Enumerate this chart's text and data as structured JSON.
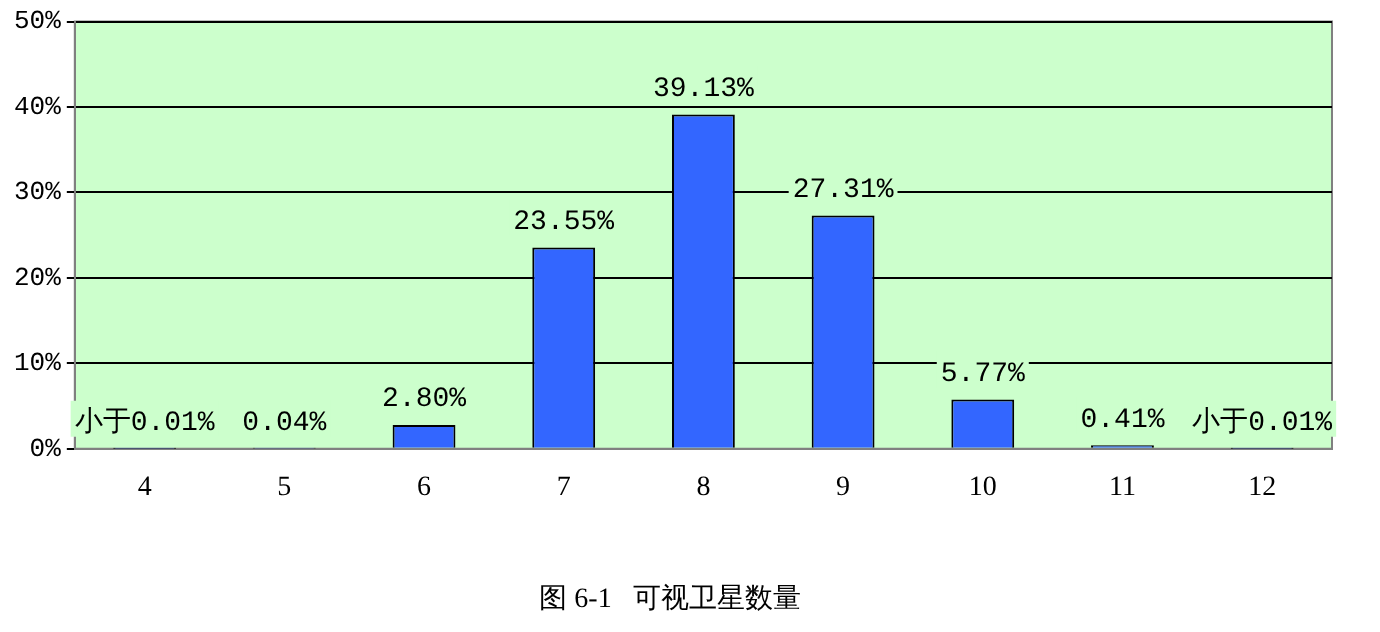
{
  "chart_data": {
    "type": "bar",
    "title": "图 6-1   可视卫星数量",
    "categories": [
      "4",
      "5",
      "6",
      "7",
      "8",
      "9",
      "10",
      "11",
      "12"
    ],
    "values": [
      0.005,
      0.04,
      2.8,
      23.55,
      39.13,
      27.31,
      5.77,
      0.41,
      0.005
    ],
    "value_labels": [
      "小于0.01%",
      "0.04%",
      "2.80%",
      "23.55%",
      "39.13%",
      "27.31%",
      "5.77%",
      "0.41%",
      "小于0.01%"
    ],
    "color": "#3366ff",
    "ylim": [
      0,
      50
    ],
    "yticks": [
      {
        "value": 0,
        "label": "0%"
      },
      {
        "value": 10,
        "label": "10%"
      },
      {
        "value": 20,
        "label": "20%"
      },
      {
        "value": 30,
        "label": "30%"
      },
      {
        "value": 40,
        "label": "40%"
      },
      {
        "value": 50,
        "label": "50%"
      }
    ],
    "grid": "y",
    "legend": false
  }
}
